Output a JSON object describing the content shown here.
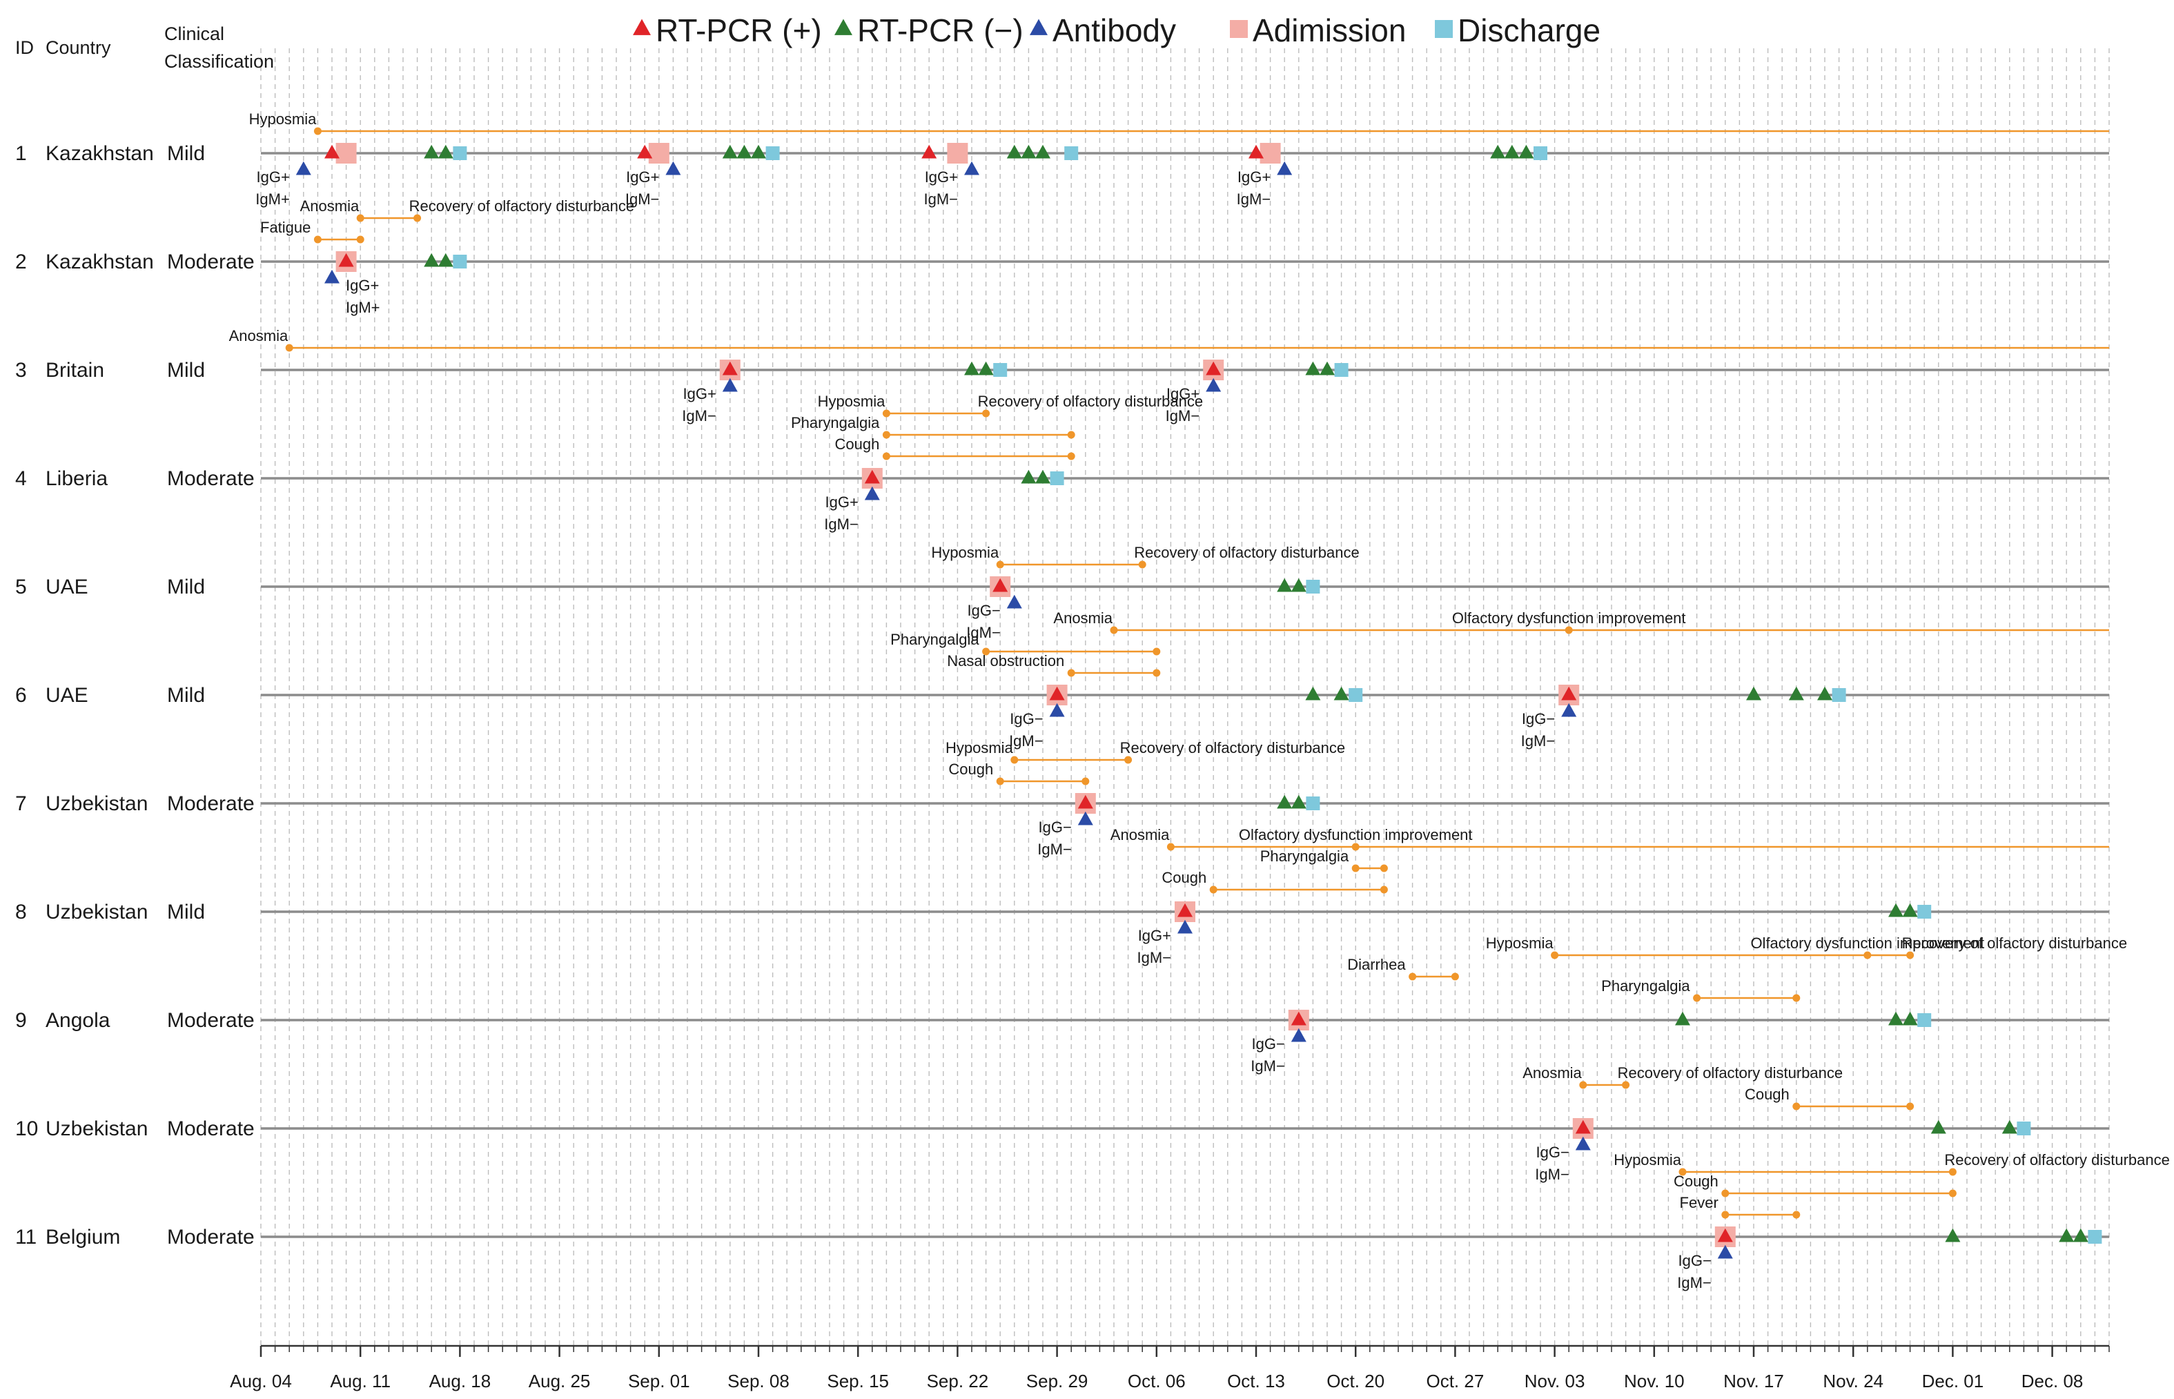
{
  "chart_data": {
    "type": "timeline",
    "headers": {
      "id": "ID",
      "country": "Country",
      "classification_line1": "Clinical",
      "classification_line2": "Classification"
    },
    "legend": [
      {
        "key": "rt_pos",
        "label": "RT-PCR (+)",
        "shape": "triangle",
        "color": "#e02428"
      },
      {
        "key": "rt_neg",
        "label": "RT-PCR (−)",
        "shape": "triangle",
        "color": "#2e7d32"
      },
      {
        "key": "antibody",
        "label": "Antibody",
        "shape": "triangle",
        "color": "#2b4ba6"
      },
      {
        "key": "admission",
        "label": "Adimission",
        "shape": "square",
        "color": "#f4ada6"
      },
      {
        "key": "discharge",
        "label": "Discharge",
        "shape": "square",
        "color": "#7ec8dc"
      }
    ],
    "colors": {
      "symptom": "#f0962a",
      "row_line": "#8c8c8c",
      "grid": "#bdbdbd",
      "axis": "#333333"
    },
    "x_axis": {
      "start": "Aug. 04",
      "end": "Dec. 12",
      "tick_labels": [
        "Aug. 04",
        "Aug. 11",
        "Aug. 18",
        "Aug. 25",
        "Sep. 01",
        "Sep. 08",
        "Sep. 15",
        "Sep. 22",
        "Sep. 29",
        "Oct. 06",
        "Oct. 13",
        "Oct. 20",
        "Oct. 27",
        "Nov. 03",
        "Nov. 10",
        "Nov. 17",
        "Nov. 24",
        "Dec. 01",
        "Dec. 08"
      ],
      "grid": "daily dashed"
    },
    "patients": [
      {
        "id": "1",
        "country": "Kazakhstan",
        "classification": "Mild",
        "events": [
          {
            "type": "antibody",
            "date": "Aug. 07",
            "label": [
              "IgG+",
              "IgM+"
            ]
          },
          {
            "type": "rt_pos",
            "date": "Aug. 09"
          },
          {
            "type": "admission",
            "date": "Aug. 10"
          },
          {
            "type": "rt_neg",
            "date": "Aug. 16"
          },
          {
            "type": "rt_neg",
            "date": "Aug. 17"
          },
          {
            "type": "discharge",
            "date": "Aug. 18"
          },
          {
            "type": "rt_pos",
            "date": "Aug. 31"
          },
          {
            "type": "admission",
            "date": "Sep. 01"
          },
          {
            "type": "antibody",
            "date": "Sep. 02",
            "label": [
              "IgG+",
              "IgM−"
            ]
          },
          {
            "type": "rt_neg",
            "date": "Sep. 06"
          },
          {
            "type": "rt_neg",
            "date": "Sep. 07"
          },
          {
            "type": "rt_neg",
            "date": "Sep. 08"
          },
          {
            "type": "discharge",
            "date": "Sep. 09"
          },
          {
            "type": "rt_pos",
            "date": "Sep. 20"
          },
          {
            "type": "admission",
            "date": "Sep. 22"
          },
          {
            "type": "antibody",
            "date": "Sep. 23",
            "label": [
              "IgG+",
              "IgM−"
            ]
          },
          {
            "type": "rt_neg",
            "date": "Sep. 26"
          },
          {
            "type": "rt_neg",
            "date": "Sep. 27"
          },
          {
            "type": "rt_neg",
            "date": "Sep. 28"
          },
          {
            "type": "discharge",
            "date": "Sep. 30"
          },
          {
            "type": "rt_pos",
            "date": "Oct. 13"
          },
          {
            "type": "admission",
            "date": "Oct. 14"
          },
          {
            "type": "antibody",
            "date": "Oct. 15",
            "label": [
              "IgG+",
              "IgM−"
            ]
          },
          {
            "type": "rt_neg",
            "date": "Oct. 30"
          },
          {
            "type": "rt_neg",
            "date": "Oct. 31"
          },
          {
            "type": "rt_neg",
            "date": "Nov. 01"
          },
          {
            "type": "discharge",
            "date": "Nov. 02"
          }
        ],
        "symptoms": [
          {
            "name": "Hyposmia",
            "start": "Aug. 08",
            "end": "Dec. 12",
            "open_end": true
          }
        ]
      },
      {
        "id": "2",
        "country": "Kazakhstan",
        "classification": "Moderate",
        "events": [
          {
            "type": "antibody",
            "date": "Aug. 09",
            "label": [
              "IgG+",
              "IgM+"
            ]
          },
          {
            "type": "admission",
            "date": "Aug. 10"
          },
          {
            "type": "rt_pos",
            "date": "Aug. 10"
          },
          {
            "type": "rt_neg",
            "date": "Aug. 16"
          },
          {
            "type": "rt_neg",
            "date": "Aug. 17"
          },
          {
            "type": "discharge",
            "date": "Aug. 18"
          }
        ],
        "symptoms": [
          {
            "name": "Anosmia",
            "start": "Aug. 11",
            "end": "Aug. 15",
            "end_label": "Recovery of olfactory disturbance"
          },
          {
            "name": "Fatigue",
            "start": "Aug. 08",
            "end": "Aug. 11"
          }
        ]
      },
      {
        "id": "3",
        "country": "Britain",
        "classification": "Mild",
        "events": [
          {
            "type": "admission",
            "date": "Sep. 06"
          },
          {
            "type": "rt_pos",
            "date": "Sep. 06"
          },
          {
            "type": "antibody",
            "date": "Sep. 06",
            "label": [
              "IgG+",
              "IgM−"
            ]
          },
          {
            "type": "rt_neg",
            "date": "Sep. 23"
          },
          {
            "type": "rt_neg",
            "date": "Sep. 24"
          },
          {
            "type": "discharge",
            "date": "Sep. 25"
          },
          {
            "type": "admission",
            "date": "Oct. 10"
          },
          {
            "type": "rt_pos",
            "date": "Oct. 10"
          },
          {
            "type": "antibody",
            "date": "Oct. 10",
            "label": [
              "IgG+",
              "IgM−"
            ]
          },
          {
            "type": "rt_neg",
            "date": "Oct. 17"
          },
          {
            "type": "rt_neg",
            "date": "Oct. 18"
          },
          {
            "type": "discharge",
            "date": "Oct. 19"
          }
        ],
        "symptoms": [
          {
            "name": "Anosmia",
            "start": "Aug. 06",
            "end": "Dec. 12",
            "open_end": true
          }
        ]
      },
      {
        "id": "4",
        "country": "Liberia",
        "classification": "Moderate",
        "events": [
          {
            "type": "admission",
            "date": "Sep. 16"
          },
          {
            "type": "rt_pos",
            "date": "Sep. 16"
          },
          {
            "type": "antibody",
            "date": "Sep. 16",
            "label": [
              "IgG+",
              "IgM−"
            ]
          },
          {
            "type": "rt_neg",
            "date": "Sep. 27"
          },
          {
            "type": "rt_neg",
            "date": "Sep. 28"
          },
          {
            "type": "discharge",
            "date": "Sep. 29"
          }
        ],
        "symptoms": [
          {
            "name": "Hyposmia",
            "start": "Sep. 17",
            "end": "Sep. 24",
            "end_label": "Recovery of olfactory disturbance"
          },
          {
            "name": "Pharyngalgia",
            "start": "Sep. 17",
            "end": "Sep. 30"
          },
          {
            "name": "Cough",
            "start": "Sep. 17",
            "end": "Sep. 30"
          }
        ]
      },
      {
        "id": "5",
        "country": "UAE",
        "classification": "Mild",
        "events": [
          {
            "type": "admission",
            "date": "Sep. 25"
          },
          {
            "type": "rt_pos",
            "date": "Sep. 25"
          },
          {
            "type": "antibody",
            "date": "Sep. 26",
            "label": [
              "IgG−",
              "IgM−"
            ]
          },
          {
            "type": "rt_neg",
            "date": "Oct. 15"
          },
          {
            "type": "rt_neg",
            "date": "Oct. 16"
          },
          {
            "type": "discharge",
            "date": "Oct. 17"
          }
        ],
        "symptoms": [
          {
            "name": "Hyposmia",
            "start": "Sep. 25",
            "end": "Oct. 05",
            "end_label": "Recovery of olfactory disturbance"
          }
        ]
      },
      {
        "id": "6",
        "country": "UAE",
        "classification": "Mild",
        "events": [
          {
            "type": "admission",
            "date": "Sep. 29"
          },
          {
            "type": "rt_pos",
            "date": "Sep. 29"
          },
          {
            "type": "antibody",
            "date": "Sep. 29",
            "label": [
              "IgG−",
              "IgM−"
            ]
          },
          {
            "type": "rt_neg",
            "date": "Oct. 17"
          },
          {
            "type": "rt_neg",
            "date": "Oct. 19"
          },
          {
            "type": "discharge",
            "date": "Oct. 20"
          },
          {
            "type": "admission",
            "date": "Nov. 04"
          },
          {
            "type": "rt_pos",
            "date": "Nov. 04"
          },
          {
            "type": "antibody",
            "date": "Nov. 04",
            "label": [
              "IgG−",
              "IgM−"
            ]
          },
          {
            "type": "rt_neg",
            "date": "Nov. 17"
          },
          {
            "type": "rt_neg",
            "date": "Nov. 20"
          },
          {
            "type": "rt_neg",
            "date": "Nov. 22"
          },
          {
            "type": "discharge",
            "date": "Nov. 23"
          }
        ],
        "symptoms": [
          {
            "name": "Anosmia",
            "start": "Oct. 03",
            "end": "Dec. 12",
            "open_end": true,
            "mid": "Nov. 04",
            "mid_label": "Olfactory dysfunction improvement"
          },
          {
            "name": "Pharyngalgia",
            "start": "Sep. 24",
            "end": "Oct. 06"
          },
          {
            "name": "Nasal obstruction",
            "start": "Sep. 30",
            "end": "Oct. 06"
          }
        ]
      },
      {
        "id": "7",
        "country": "Uzbekistan",
        "classification": "Moderate",
        "events": [
          {
            "type": "admission",
            "date": "Oct. 01"
          },
          {
            "type": "rt_pos",
            "date": "Oct. 01"
          },
          {
            "type": "antibody",
            "date": "Oct. 01",
            "label": [
              "IgG−",
              "IgM−"
            ]
          },
          {
            "type": "rt_neg",
            "date": "Oct. 15"
          },
          {
            "type": "rt_neg",
            "date": "Oct. 16"
          },
          {
            "type": "discharge",
            "date": "Oct. 17"
          }
        ],
        "symptoms": [
          {
            "name": "Hyposmia",
            "start": "Sep. 26",
            "end": "Oct. 04",
            "end_label": "Recovery of olfactory disturbance"
          },
          {
            "name": "Cough",
            "start": "Sep. 25",
            "end": "Oct. 01"
          }
        ]
      },
      {
        "id": "8",
        "country": "Uzbekistan",
        "classification": "Mild",
        "events": [
          {
            "type": "admission",
            "date": "Oct. 08"
          },
          {
            "type": "rt_pos",
            "date": "Oct. 08"
          },
          {
            "type": "antibody",
            "date": "Oct. 08",
            "label": [
              "IgG+",
              "IgM−"
            ]
          },
          {
            "type": "rt_neg",
            "date": "Nov. 27"
          },
          {
            "type": "rt_neg",
            "date": "Nov. 28"
          },
          {
            "type": "discharge",
            "date": "Nov. 29"
          }
        ],
        "symptoms": [
          {
            "name": "Anosmia",
            "start": "Oct. 07",
            "end": "Dec. 12",
            "open_end": true,
            "mid": "Oct. 20",
            "mid_label": "Olfactory dysfunction improvement"
          },
          {
            "name": "Pharyngalgia",
            "start": "Oct. 20",
            "end": "Oct. 22"
          },
          {
            "name": "Cough",
            "start": "Oct. 10",
            "end": "Oct. 22"
          }
        ]
      },
      {
        "id": "9",
        "country": "Angola",
        "classification": "Moderate",
        "events": [
          {
            "type": "admission",
            "date": "Oct. 16"
          },
          {
            "type": "rt_pos",
            "date": "Oct. 16"
          },
          {
            "type": "antibody",
            "date": "Oct. 16",
            "label": [
              "IgG−",
              "IgM−"
            ]
          },
          {
            "type": "rt_neg",
            "date": "Nov. 12"
          },
          {
            "type": "rt_neg",
            "date": "Nov. 27"
          },
          {
            "type": "rt_neg",
            "date": "Nov. 28"
          },
          {
            "type": "discharge",
            "date": "Nov. 29"
          }
        ],
        "symptoms": [
          {
            "name": "Hyposmia",
            "start": "Nov. 03",
            "end": "Nov. 28",
            "mid": "Nov. 25",
            "mid_label": "Olfactory dysfunction improvement",
            "end_label": "Recovery of olfactory disturbance"
          },
          {
            "name": "Diarrhea",
            "start": "Oct. 24",
            "end": "Oct. 27"
          },
          {
            "name": "Pharyngalgia",
            "start": "Nov. 13",
            "end": "Nov. 20"
          }
        ]
      },
      {
        "id": "10",
        "country": "Uzbekistan",
        "classification": "Moderate",
        "events": [
          {
            "type": "admission",
            "date": "Nov. 05"
          },
          {
            "type": "rt_pos",
            "date": "Nov. 05"
          },
          {
            "type": "antibody",
            "date": "Nov. 05",
            "label": [
              "IgG−",
              "IgM−"
            ]
          },
          {
            "type": "rt_neg",
            "date": "Nov. 30"
          },
          {
            "type": "rt_neg",
            "date": "Dec. 05"
          },
          {
            "type": "discharge",
            "date": "Dec. 06"
          }
        ],
        "symptoms": [
          {
            "name": "Anosmia",
            "start": "Nov. 05",
            "end": "Nov. 08",
            "end_label": "Recovery of olfactory disturbance"
          },
          {
            "name": "Cough",
            "start": "Nov. 20",
            "end": "Nov. 28"
          }
        ]
      },
      {
        "id": "11",
        "country": "Belgium",
        "classification": "Moderate",
        "events": [
          {
            "type": "admission",
            "date": "Nov. 15"
          },
          {
            "type": "rt_pos",
            "date": "Nov. 15"
          },
          {
            "type": "antibody",
            "date": "Nov. 15",
            "label": [
              "IgG−",
              "IgM−"
            ]
          },
          {
            "type": "rt_neg",
            "date": "Dec. 01"
          },
          {
            "type": "rt_neg",
            "date": "Dec. 09"
          },
          {
            "type": "rt_neg",
            "date": "Dec. 10"
          },
          {
            "type": "discharge",
            "date": "Dec. 11"
          }
        ],
        "symptoms": [
          {
            "name": "Hyposmia",
            "start": "Nov. 12",
            "end": "Dec. 01",
            "end_label": "Recovery of olfactory disturbance"
          },
          {
            "name": "Cough",
            "start": "Nov. 15",
            "end": "Dec. 01"
          },
          {
            "name": "Fever",
            "start": "Nov. 15",
            "end": "Nov. 20"
          }
        ]
      }
    ]
  }
}
